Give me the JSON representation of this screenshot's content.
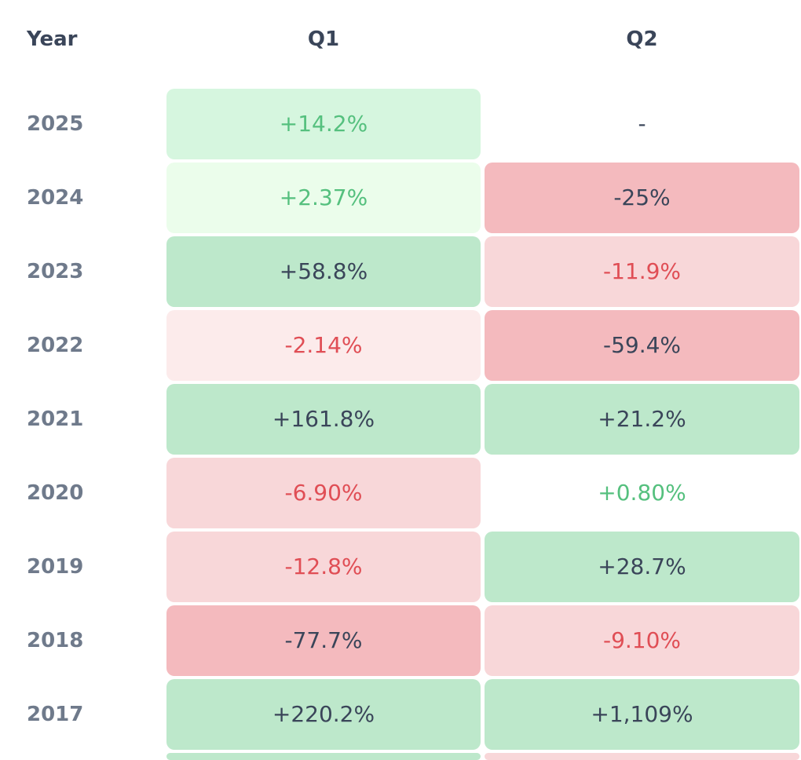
{
  "header": {
    "year": "Year",
    "q1": "Q1",
    "q2": "Q2"
  },
  "rows": [
    {
      "year": "2025",
      "q1": "+14.2%",
      "q2": "-"
    },
    {
      "year": "2024",
      "q1": "+2.37%",
      "q2": "-25%"
    },
    {
      "year": "2023",
      "q1": "+58.8%",
      "q2": "-11.9%"
    },
    {
      "year": "2022",
      "q1": "-2.14%",
      "q2": "-59.4%"
    },
    {
      "year": "2021",
      "q1": "+161.8%",
      "q2": "+21.2%"
    },
    {
      "year": "2020",
      "q1": "-6.90%",
      "q2": "+0.80%"
    },
    {
      "year": "2019",
      "q1": "-12.8%",
      "q2": "+28.7%"
    },
    {
      "year": "2018",
      "q1": "-77.7%",
      "q2": "-9.10%"
    },
    {
      "year": "2017",
      "q1": "+220.2%",
      "q2": "+1,109%"
    }
  ],
  "colors": {
    "header_text": "#3a4559",
    "year_text": "#6f7a8b",
    "positive_text": "#55c07e",
    "negative_text": "#e04e55",
    "green_strong_bg": "#bde8cb",
    "green_light_bg": "#d6f6df",
    "green_faint_bg": "#ebfdeb",
    "red_strong_bg": "#f4babe",
    "red_light_bg": "#f8d7d9",
    "red_faint_bg": "#fcebeb"
  }
}
